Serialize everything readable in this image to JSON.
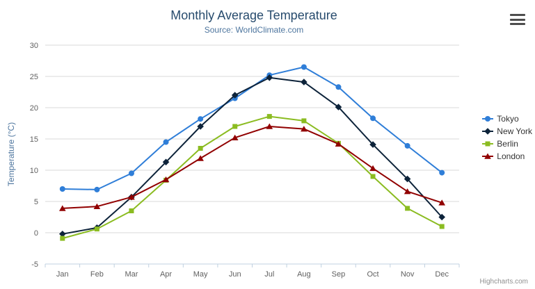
{
  "chart_data": {
    "type": "line",
    "title": "Monthly Average Temperature",
    "subtitle": "Source: WorldClimate.com",
    "categories": [
      "Jan",
      "Feb",
      "Mar",
      "Apr",
      "May",
      "Jun",
      "Jul",
      "Aug",
      "Sep",
      "Oct",
      "Nov",
      "Dec"
    ],
    "ylabel": "Temperature (°C)",
    "ylim": [
      -5,
      30
    ],
    "ytick_step": 5,
    "grid": true,
    "legend_position": "right",
    "series": [
      {
        "name": "Tokyo",
        "color": "#2f7ed8",
        "marker": "circle",
        "values": [
          7.0,
          6.9,
          9.5,
          14.5,
          18.2,
          21.5,
          25.2,
          26.5,
          23.3,
          18.3,
          13.9,
          9.6
        ]
      },
      {
        "name": "New York",
        "color": "#0d233a",
        "marker": "diamond",
        "values": [
          -0.2,
          0.8,
          5.7,
          11.3,
          17.0,
          22.0,
          24.8,
          24.1,
          20.1,
          14.1,
          8.6,
          2.5
        ]
      },
      {
        "name": "Berlin",
        "color": "#8bbc21",
        "marker": "square",
        "values": [
          -0.9,
          0.6,
          3.5,
          8.4,
          13.5,
          17.0,
          18.6,
          17.9,
          14.3,
          9.0,
          3.9,
          1.0
        ]
      },
      {
        "name": "London",
        "color": "#910000",
        "marker": "triangle",
        "values": [
          3.9,
          4.2,
          5.7,
          8.5,
          11.9,
          15.2,
          17.0,
          16.6,
          14.2,
          10.3,
          6.6,
          4.8
        ]
      }
    ],
    "credits": "Highcharts.com",
    "colors": {
      "grid": "#d8d8d8",
      "axis_line": "#c0d0e0",
      "tick_label": "#606060"
    }
  }
}
